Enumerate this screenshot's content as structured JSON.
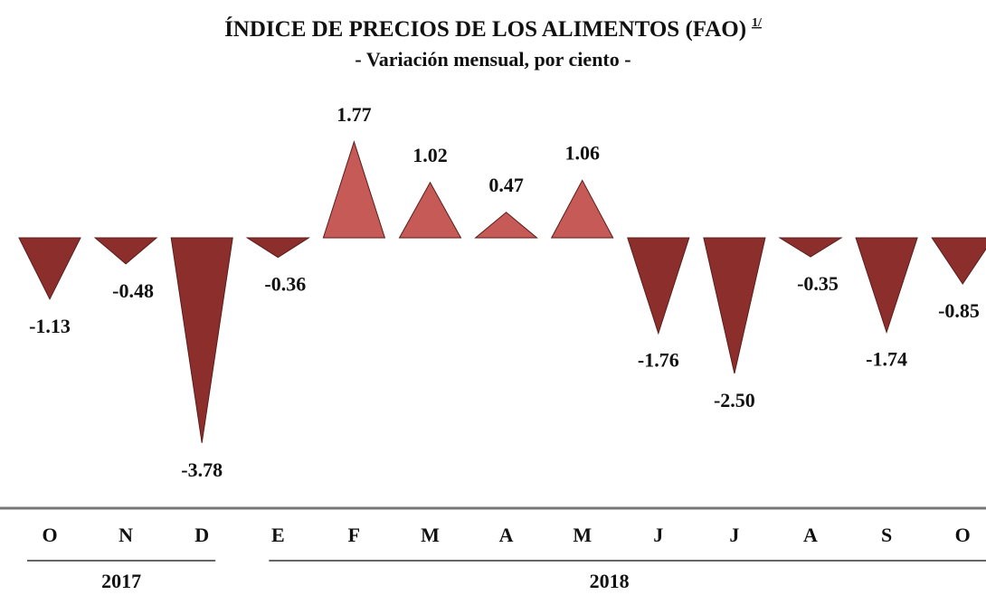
{
  "chart_data": {
    "type": "triangle",
    "title": "ÍNDICE DE PRECIOS DE LOS ALIMENTOS (FAO)",
    "title_note": "1/",
    "subtitle": "- Variación mensual, por ciento -",
    "categories": [
      "O",
      "N",
      "D",
      "E",
      "F",
      "M",
      "A",
      "M",
      "J",
      "J",
      "A",
      "S",
      "O"
    ],
    "values": [
      -1.13,
      -0.48,
      -3.78,
      -0.36,
      1.77,
      1.02,
      0.47,
      1.06,
      -1.76,
      -2.5,
      -0.35,
      -1.74,
      -0.85
    ],
    "value_labels": [
      "-1.13",
      "-0.48",
      "-3.78",
      "-0.36",
      "1.77",
      "1.02",
      "0.47",
      "1.06",
      "-1.76",
      "-2.50",
      "-0.35",
      "-1.74",
      "-0.85"
    ],
    "groups": [
      {
        "label": "2017",
        "size": 3
      },
      {
        "label": "2018",
        "size": 10
      }
    ],
    "colors": {
      "positive": "#c65a56",
      "negative": "#8c2f2c"
    }
  }
}
